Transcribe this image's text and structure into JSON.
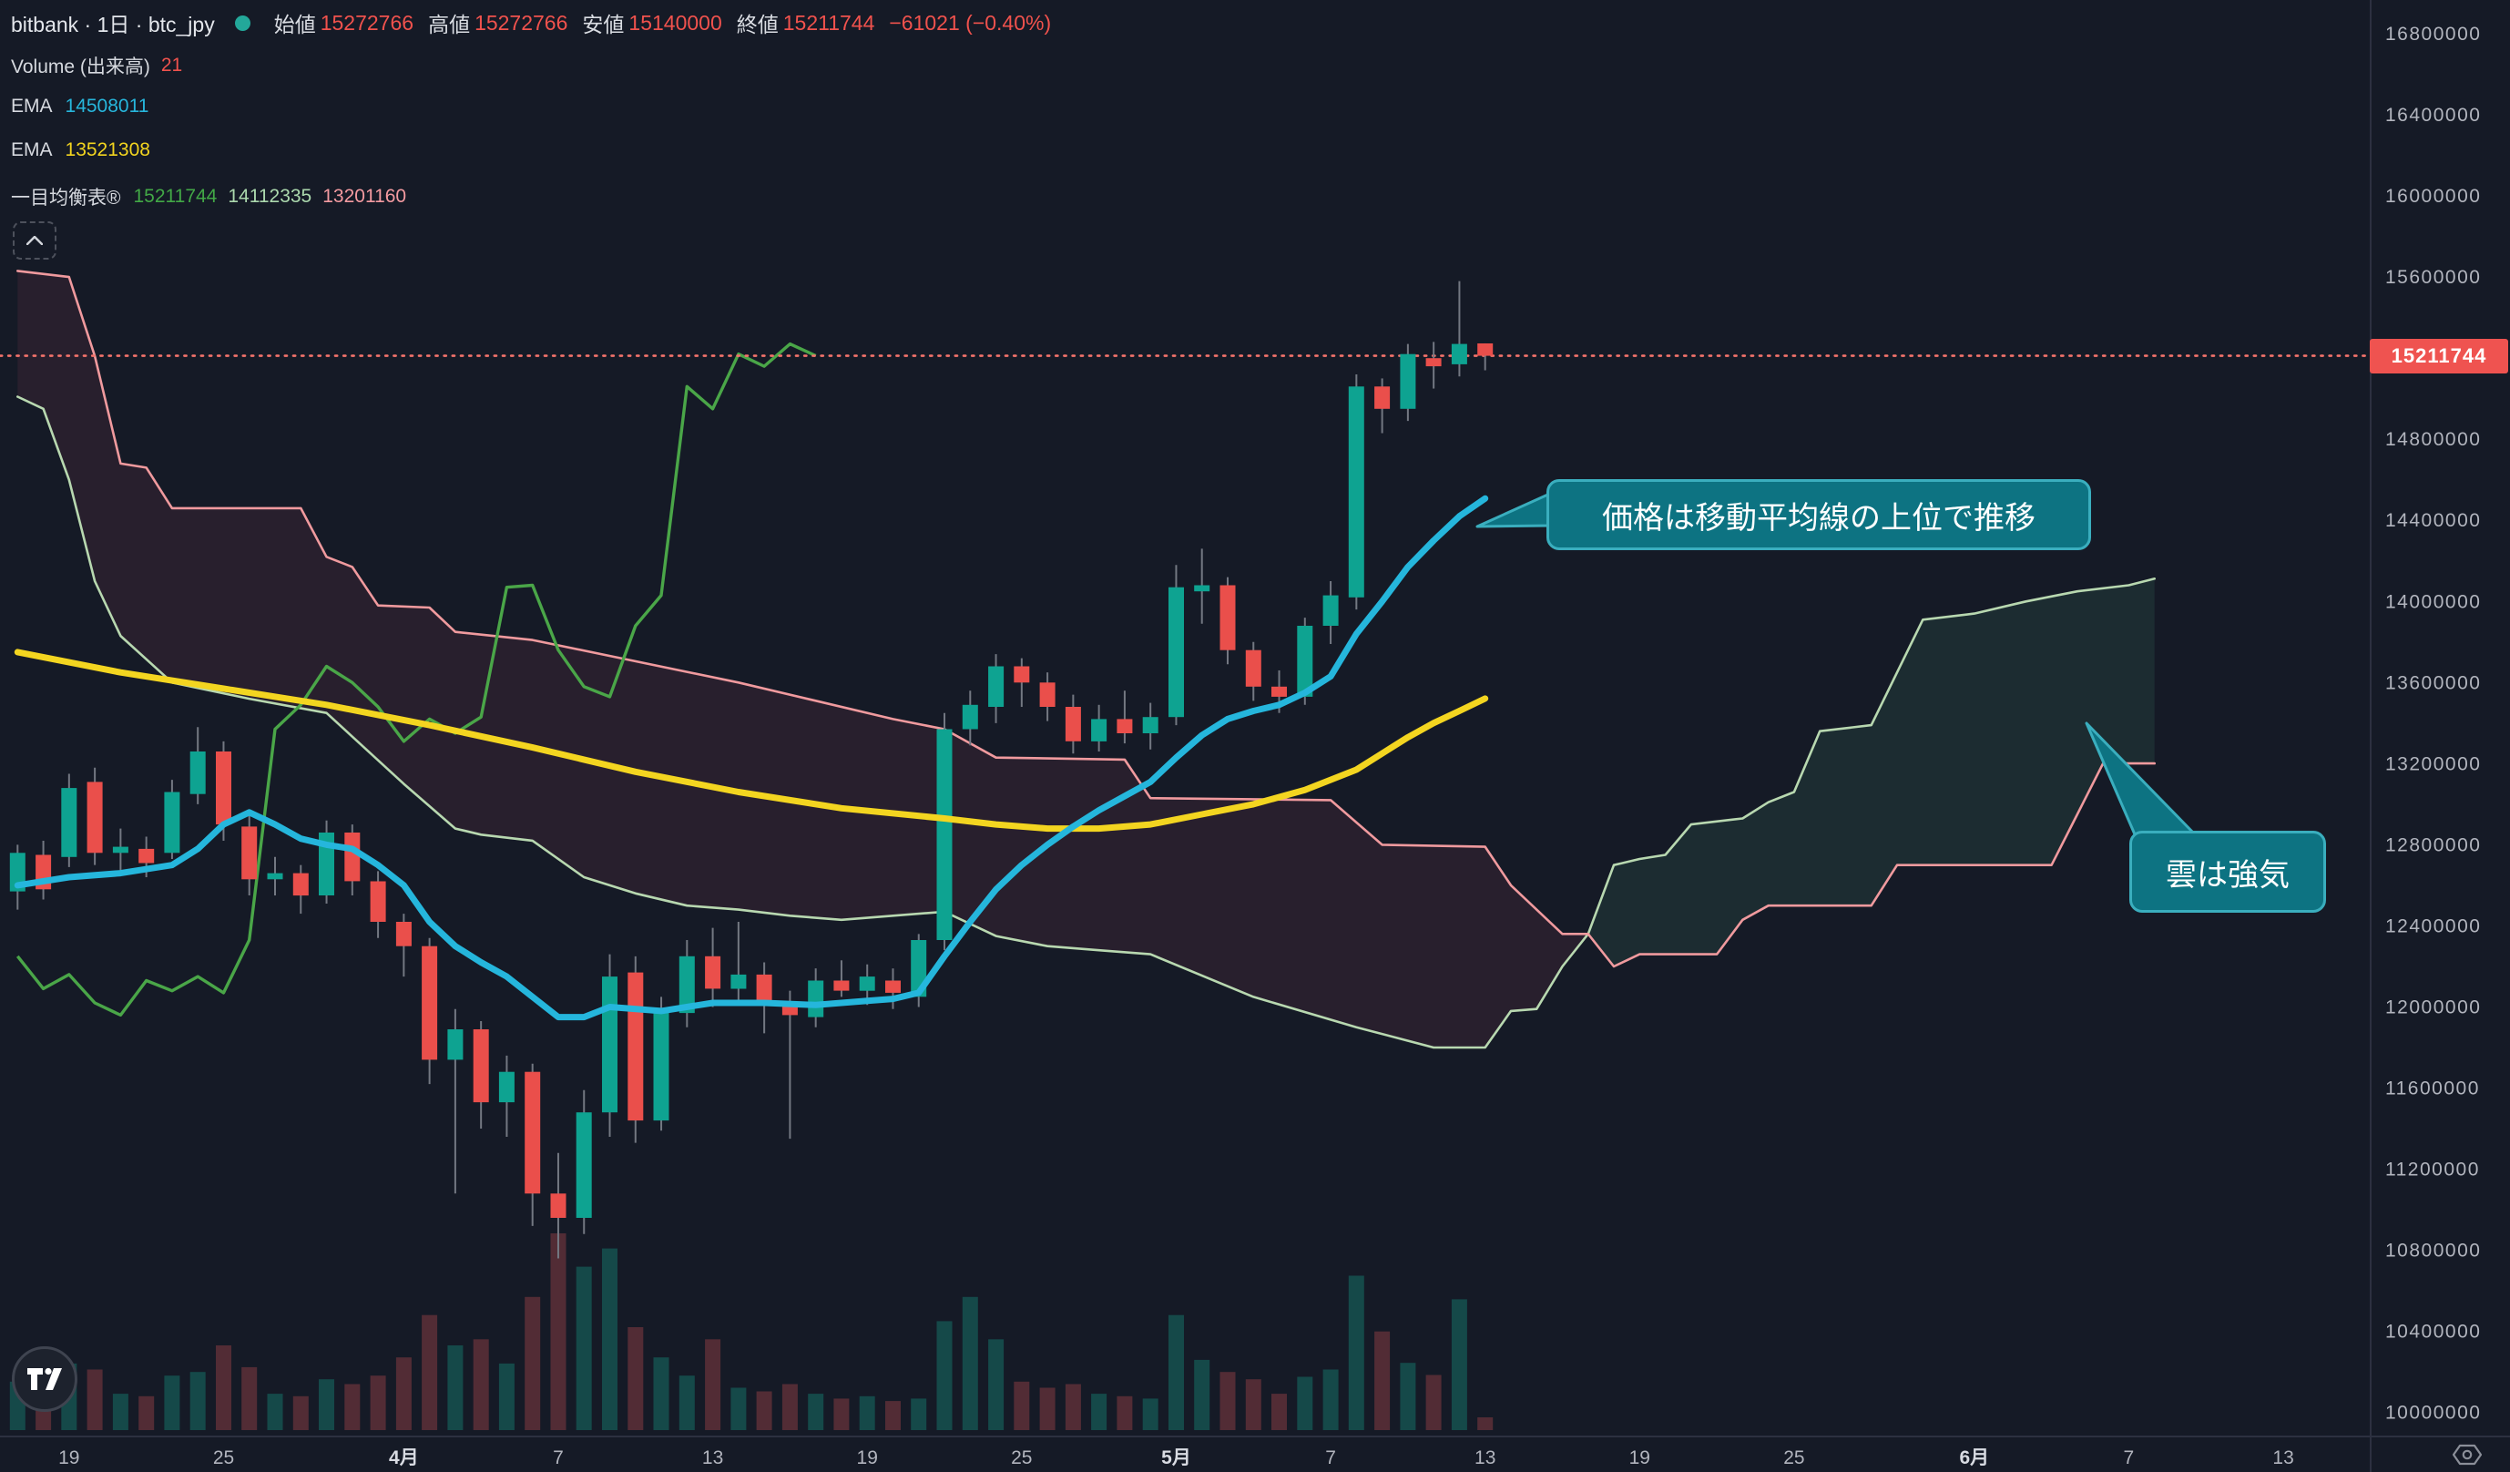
{
  "header": {
    "symbol": "bitbank · 1日 · btc_jpy",
    "ohlc": [
      {
        "label": "始値",
        "value": "15272766"
      },
      {
        "label": "高値",
        "value": "15272766"
      },
      {
        "label": "安値",
        "value": "15140000"
      },
      {
        "label": "終値",
        "value": "15211744"
      }
    ],
    "change": "−61021 (−0.40%)"
  },
  "legend": {
    "volume_label": "Volume (出来高)",
    "volume_value": "21",
    "ema1_label": "EMA",
    "ema1_value": "14508011",
    "ema2_label": "EMA",
    "ema2_value": "13521308",
    "ichimoku_label": "一目均衡表®",
    "ichimoku_values": [
      "15211744",
      "14112335",
      "13201160"
    ]
  },
  "callouts": [
    {
      "text": "価格は移動平均線の上位で推移"
    },
    {
      "text": "雲は強気"
    }
  ],
  "colors": {
    "background": "#151a26",
    "candle_up": "#0ea391",
    "candle_down": "#ea4f4b",
    "wick": "#737882",
    "volume_up": "rgba(22,150,132,0.38)",
    "volume_down": "rgba(224,85,90,0.30)",
    "ema_fast": "#25b6dc",
    "ema_slow": "#f3d520",
    "chikou": "#4aa648",
    "senkou_a": "#b8d8b0",
    "senkou_b": "#f09a9e",
    "cloud_bear": "rgba(216,80,110,0.10)",
    "cloud_bull": "rgba(80,170,120,0.13)",
    "price_line": "#f4736b",
    "price_tag_bg": "#ef5350",
    "axis_text": "#b2b5be",
    "axis_line": "#2c3040",
    "callout_fill": "#0d7382",
    "callout_border": "#3aaebe"
  },
  "chart_data": {
    "type": "candlestick",
    "title": "bitbank btc_jpy 1D with EMA and Ichimoku cloud",
    "y_axis": {
      "ticks": [
        16800000,
        16400000,
        16000000,
        15600000,
        14800000,
        14400000,
        14000000,
        13600000,
        13200000,
        12800000,
        12400000,
        12000000,
        11600000,
        11200000,
        10800000,
        10400000,
        10000000
      ],
      "range": [
        9800000,
        16950000
      ],
      "price_line": {
        "value": 15211744,
        "label": "15211744"
      }
    },
    "x_axis": {
      "ticks": [
        {
          "label": "19",
          "i": 2,
          "bold": false
        },
        {
          "label": "25",
          "i": 8,
          "bold": false
        },
        {
          "label": "4月",
          "i": 15,
          "bold": true
        },
        {
          "label": "7",
          "i": 21,
          "bold": false
        },
        {
          "label": "13",
          "i": 27,
          "bold": false
        },
        {
          "label": "19",
          "i": 33,
          "bold": false
        },
        {
          "label": "25",
          "i": 39,
          "bold": false
        },
        {
          "label": "5月",
          "i": 45,
          "bold": true
        },
        {
          "label": "7",
          "i": 51,
          "bold": false
        },
        {
          "label": "13",
          "i": 57,
          "bold": false
        },
        {
          "label": "19",
          "i": 63,
          "bold": false
        },
        {
          "label": "25",
          "i": 69,
          "bold": false
        },
        {
          "label": "6月",
          "i": 76,
          "bold": true
        },
        {
          "label": "7",
          "i": 82,
          "bold": false
        },
        {
          "label": "13",
          "i": 88,
          "bold": false
        }
      ]
    },
    "candles": [
      [
        "3/17",
        12570000,
        12800000,
        12480000,
        12760000,
        80
      ],
      [
        "3/18",
        12750000,
        12820000,
        12530000,
        12580000,
        70
      ],
      [
        "3/19",
        12740000,
        13150000,
        12690000,
        13080000,
        110
      ],
      [
        "3/20",
        13110000,
        13180000,
        12700000,
        12760000,
        100
      ],
      [
        "3/21",
        12760000,
        12880000,
        12650000,
        12790000,
        60
      ],
      [
        "3/22",
        12780000,
        12840000,
        12640000,
        12710000,
        56
      ],
      [
        "3/23",
        12760000,
        13120000,
        12730000,
        13060000,
        90
      ],
      [
        "3/24",
        13050000,
        13380000,
        13000000,
        13260000,
        96
      ],
      [
        "3/25",
        13260000,
        13310000,
        12820000,
        12900000,
        140
      ],
      [
        "3/26",
        12890000,
        12950000,
        12550000,
        12630000,
        104
      ],
      [
        "3/27",
        12630000,
        12740000,
        12550000,
        12660000,
        60
      ],
      [
        "3/28",
        12660000,
        12700000,
        12460000,
        12550000,
        56
      ],
      [
        "3/29",
        12550000,
        12920000,
        12510000,
        12860000,
        84
      ],
      [
        "3/30",
        12860000,
        12900000,
        12550000,
        12620000,
        76
      ],
      [
        "3/31",
        12620000,
        12670000,
        12340000,
        12420000,
        90
      ],
      [
        "4/1",
        12420000,
        12460000,
        12150000,
        12300000,
        120
      ],
      [
        "4/2",
        12300000,
        12340000,
        11620000,
        11740000,
        190
      ],
      [
        "4/3",
        11740000,
        11990000,
        11080000,
        11890000,
        140
      ],
      [
        "4/4",
        11890000,
        11930000,
        11400000,
        11530000,
        150
      ],
      [
        "4/5",
        11530000,
        11760000,
        11360000,
        11680000,
        110
      ],
      [
        "4/6",
        11680000,
        11720000,
        10920000,
        11080000,
        220
      ],
      [
        "4/7",
        11080000,
        11280000,
        10760000,
        10960000,
        325
      ],
      [
        "4/8",
        10960000,
        11590000,
        10880000,
        11480000,
        270
      ],
      [
        "4/9",
        11480000,
        12260000,
        11360000,
        12150000,
        300
      ],
      [
        "4/10",
        12170000,
        12250000,
        11330000,
        11440000,
        170
      ],
      [
        "4/11",
        11440000,
        12050000,
        11390000,
        11980000,
        120
      ],
      [
        "4/12",
        11970000,
        12330000,
        11900000,
        12250000,
        90
      ],
      [
        "4/13",
        12250000,
        12390000,
        12000000,
        12090000,
        150
      ],
      [
        "4/14",
        12090000,
        12420000,
        12020000,
        12160000,
        70
      ],
      [
        "4/15",
        12160000,
        12220000,
        11870000,
        12020000,
        64
      ],
      [
        "4/16",
        12010000,
        12080000,
        11350000,
        11960000,
        76
      ],
      [
        "4/17",
        11950000,
        12190000,
        11900000,
        12130000,
        60
      ],
      [
        "4/18",
        12130000,
        12230000,
        12050000,
        12080000,
        52
      ],
      [
        "4/19",
        12080000,
        12210000,
        12010000,
        12150000,
        56
      ],
      [
        "4/20",
        12130000,
        12190000,
        11990000,
        12070000,
        48
      ],
      [
        "4/21",
        12050000,
        12360000,
        12000000,
        12330000,
        52
      ],
      [
        "4/22",
        12330000,
        13450000,
        12280000,
        13370000,
        180
      ],
      [
        "4/23",
        13370000,
        13560000,
        13290000,
        13490000,
        220
      ],
      [
        "4/24",
        13480000,
        13740000,
        13400000,
        13680000,
        150
      ],
      [
        "4/25",
        13680000,
        13720000,
        13480000,
        13600000,
        80
      ],
      [
        "4/26",
        13600000,
        13650000,
        13410000,
        13480000,
        70
      ],
      [
        "4/27",
        13480000,
        13540000,
        13250000,
        13310000,
        76
      ],
      [
        "4/28",
        13310000,
        13490000,
        13260000,
        13420000,
        60
      ],
      [
        "4/29",
        13420000,
        13560000,
        13300000,
        13350000,
        56
      ],
      [
        "4/30",
        13350000,
        13500000,
        13270000,
        13430000,
        52
      ],
      [
        "5/1",
        13430000,
        14180000,
        13390000,
        14070000,
        190
      ],
      [
        "5/2",
        14050000,
        14260000,
        13890000,
        14080000,
        116
      ],
      [
        "5/3",
        14080000,
        14120000,
        13690000,
        13760000,
        96
      ],
      [
        "5/4",
        13760000,
        13800000,
        13510000,
        13580000,
        84
      ],
      [
        "5/5",
        13580000,
        13660000,
        13450000,
        13530000,
        60
      ],
      [
        "5/6",
        13530000,
        13920000,
        13490000,
        13880000,
        88
      ],
      [
        "5/7",
        13880000,
        14100000,
        13790000,
        14030000,
        100
      ],
      [
        "5/8",
        14020000,
        15120000,
        13960000,
        15060000,
        255
      ],
      [
        "5/9",
        15060000,
        15100000,
        14830000,
        14950000,
        163
      ],
      [
        "5/10",
        14950000,
        15270000,
        14890000,
        15220000,
        111
      ],
      [
        "5/11",
        15200000,
        15280000,
        15050000,
        15160000,
        91
      ],
      [
        "5/12",
        15170000,
        15580000,
        15110000,
        15270000,
        216
      ],
      [
        "5/13",
        15272766,
        15272766,
        15140000,
        15211744,
        21
      ]
    ],
    "overlays": {
      "ema_fast": [
        [
          0,
          12600
        ],
        [
          2,
          12640
        ],
        [
          4,
          12660
        ],
        [
          6,
          12700
        ],
        [
          7,
          12780
        ],
        [
          8,
          12900
        ],
        [
          9,
          12960
        ],
        [
          10,
          12900
        ],
        [
          11,
          12830
        ],
        [
          12,
          12800
        ],
        [
          13,
          12780
        ],
        [
          14,
          12700
        ],
        [
          15,
          12600
        ],
        [
          16,
          12420
        ],
        [
          17,
          12300
        ],
        [
          18,
          12220
        ],
        [
          19,
          12150
        ],
        [
          20,
          12050
        ],
        [
          21,
          11950
        ],
        [
          22,
          11950
        ],
        [
          23,
          12000
        ],
        [
          25,
          11980
        ],
        [
          27,
          12020
        ],
        [
          29,
          12020
        ],
        [
          31,
          12010
        ],
        [
          33,
          12030
        ],
        [
          34,
          12040
        ],
        [
          35,
          12070
        ],
        [
          36,
          12250
        ],
        [
          37,
          12420
        ],
        [
          38,
          12580
        ],
        [
          39,
          12700
        ],
        [
          40,
          12800
        ],
        [
          41,
          12890
        ],
        [
          42,
          12970
        ],
        [
          43,
          13040
        ],
        [
          44,
          13110
        ],
        [
          45,
          13230
        ],
        [
          46,
          13340
        ],
        [
          47,
          13420
        ],
        [
          48,
          13460
        ],
        [
          49,
          13490
        ],
        [
          50,
          13550
        ],
        [
          51,
          13630
        ],
        [
          52,
          13840
        ],
        [
          53,
          14000
        ],
        [
          54,
          14170
        ],
        [
          55,
          14300
        ],
        [
          56,
          14420
        ],
        [
          57,
          14508
        ]
      ],
      "ema_slow": [
        [
          0,
          13750
        ],
        [
          4,
          13650
        ],
        [
          8,
          13570
        ],
        [
          12,
          13490
        ],
        [
          16,
          13390
        ],
        [
          20,
          13280
        ],
        [
          24,
          13160
        ],
        [
          28,
          13060
        ],
        [
          32,
          12980
        ],
        [
          36,
          12930
        ],
        [
          38,
          12900
        ],
        [
          40,
          12880
        ],
        [
          42,
          12880
        ],
        [
          44,
          12900
        ],
        [
          46,
          12950
        ],
        [
          48,
          13000
        ],
        [
          50,
          13070
        ],
        [
          52,
          13170
        ],
        [
          53,
          13250
        ],
        [
          54,
          13330
        ],
        [
          55,
          13400
        ],
        [
          56,
          13460
        ],
        [
          57,
          13521
        ]
      ],
      "senkou_a": [
        [
          0,
          15010
        ],
        [
          1,
          14950
        ],
        [
          2,
          14600
        ],
        [
          3,
          14100
        ],
        [
          4,
          13830
        ],
        [
          6,
          13600
        ],
        [
          9,
          13520
        ],
        [
          12,
          13450
        ],
        [
          15,
          13100
        ],
        [
          17,
          12880
        ],
        [
          18,
          12850
        ],
        [
          20,
          12820
        ],
        [
          22,
          12640
        ],
        [
          24,
          12560
        ],
        [
          26,
          12500
        ],
        [
          28,
          12480
        ],
        [
          30,
          12450
        ],
        [
          32,
          12430
        ],
        [
          34,
          12450
        ],
        [
          36,
          12470
        ],
        [
          38,
          12350
        ],
        [
          40,
          12300
        ],
        [
          42,
          12280
        ],
        [
          44,
          12260
        ],
        [
          48,
          12050
        ],
        [
          52,
          11900
        ],
        [
          55,
          11800
        ],
        [
          57,
          11800
        ],
        [
          58,
          11980
        ],
        [
          59,
          11990
        ],
        [
          60,
          12200
        ],
        [
          61,
          12360
        ],
        [
          62,
          12700
        ],
        [
          63,
          12730
        ],
        [
          64,
          12750
        ],
        [
          65,
          12900
        ],
        [
          67,
          12930
        ],
        [
          68,
          13010
        ],
        [
          69,
          13060
        ],
        [
          70,
          13360
        ],
        [
          72,
          13390
        ],
        [
          74,
          13910
        ],
        [
          76,
          13940
        ],
        [
          78,
          14000
        ],
        [
          80,
          14050
        ],
        [
          82,
          14080
        ],
        [
          83,
          14112
        ]
      ],
      "senkou_b": [
        [
          0,
          15630
        ],
        [
          2,
          15600
        ],
        [
          3,
          15210
        ],
        [
          4,
          14680
        ],
        [
          5,
          14660
        ],
        [
          6,
          14460
        ],
        [
          11,
          14460
        ],
        [
          12,
          14220
        ],
        [
          13,
          14170
        ],
        [
          14,
          13980
        ],
        [
          16,
          13970
        ],
        [
          17,
          13850
        ],
        [
          20,
          13810
        ],
        [
          28,
          13600
        ],
        [
          34,
          13420
        ],
        [
          36,
          13370
        ],
        [
          38,
          13230
        ],
        [
          43,
          13220
        ],
        [
          44,
          13030
        ],
        [
          51,
          13020
        ],
        [
          53,
          12800
        ],
        [
          57,
          12790
        ],
        [
          58,
          12600
        ],
        [
          60,
          12360
        ],
        [
          61,
          12360
        ],
        [
          62,
          12200
        ],
        [
          63,
          12260
        ],
        [
          66,
          12260
        ],
        [
          67,
          12430
        ],
        [
          68,
          12500
        ],
        [
          72,
          12500
        ],
        [
          73,
          12700
        ],
        [
          79,
          12700
        ],
        [
          80,
          12950
        ],
        [
          81,
          13201
        ],
        [
          83,
          13201
        ]
      ],
      "senkou_scale": 1000,
      "chikou_shift": 26
    },
    "volume_axis": {
      "max": 325,
      "last_value": 21
    }
  }
}
